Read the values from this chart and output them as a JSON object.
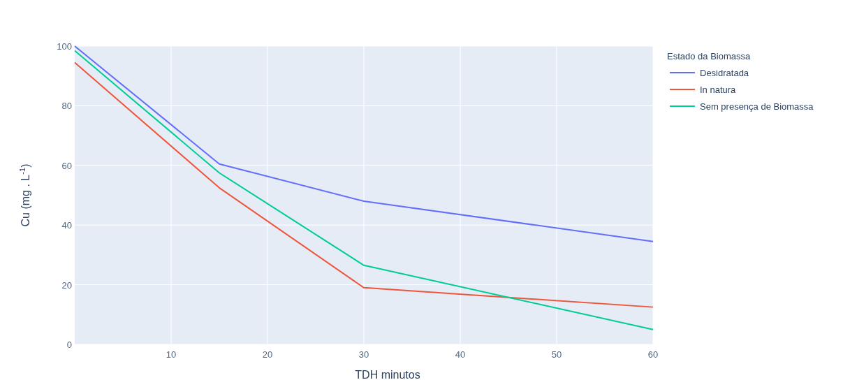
{
  "chart_data": {
    "type": "line",
    "xlabel": "TDH minutos",
    "ylabel": "Cu (mg . L$^{-1}$)",
    "legend_title": "Estado da Biomassa",
    "x": [
      0,
      15,
      30,
      60
    ],
    "series": [
      {
        "name": "Desidratada",
        "color": "#636efa",
        "values": [
          100,
          60.5,
          48,
          34.5
        ]
      },
      {
        "name": "In natura",
        "color": "#ef553b",
        "values": [
          94.5,
          52.5,
          19,
          12.5
        ]
      },
      {
        "name": "Sem presença de Biomassa",
        "color": "#00cc96",
        "values": [
          98.5,
          57.5,
          26.5,
          5
        ]
      }
    ],
    "xlim": [
      0,
      60
    ],
    "xticks": [
      10,
      20,
      30,
      40,
      50,
      60
    ],
    "ylim": [
      0,
      100
    ],
    "yticks": [
      0,
      20,
      40,
      60,
      80,
      100
    ],
    "grid": true,
    "legend": "top right",
    "line_style": "solid",
    "marker": "none"
  }
}
